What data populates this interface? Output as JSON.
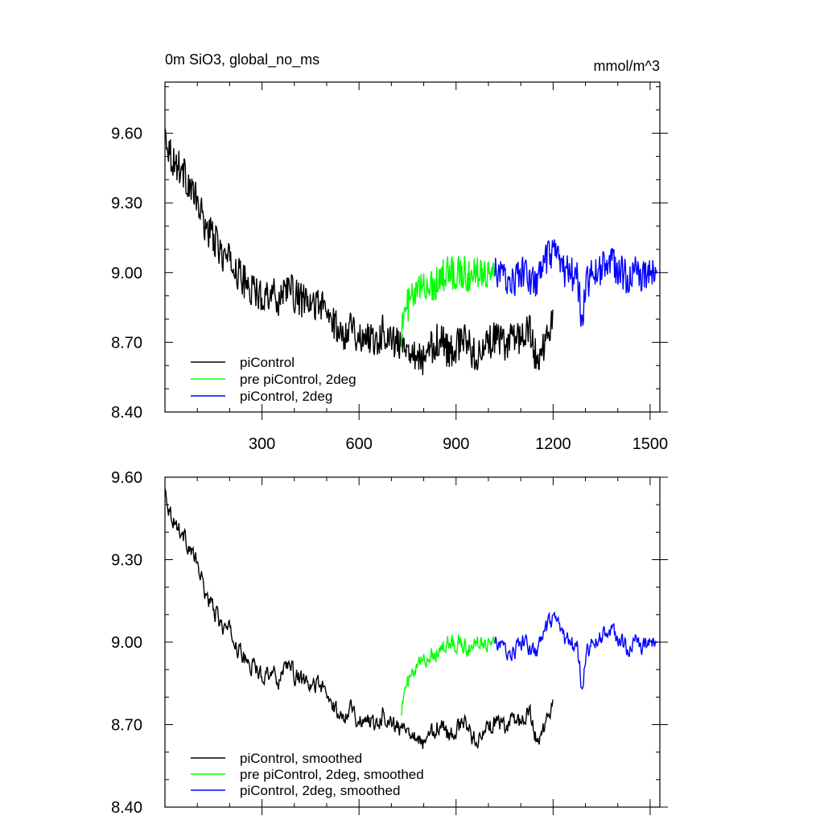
{
  "chart_data": [
    {
      "type": "line",
      "title": "0m SiO3, global_no_ms",
      "units": "mmol/m^3",
      "xlim": [
        0,
        1530
      ],
      "ylim": [
        8.4,
        9.82
      ],
      "xticks": [
        300,
        600,
        900,
        1200,
        1500
      ],
      "xtick_labels": [
        "300",
        "600",
        "900",
        "1200",
        "1500"
      ],
      "yticks": [
        8.4,
        8.7,
        9.0,
        9.3,
        9.6
      ],
      "ytick_labels": [
        "8.40",
        "8.70",
        "9.00",
        "9.30",
        "9.60"
      ],
      "legend_position": "bottom-left",
      "series": [
        {
          "name": "piControl",
          "color": "#000000",
          "x": [
            1,
            10,
            25,
            50,
            75,
            100,
            125,
            150,
            175,
            200,
            225,
            250,
            275,
            300,
            325,
            350,
            375,
            400,
            425,
            450,
            475,
            500,
            525,
            550,
            575,
            600,
            625,
            650,
            675,
            700,
            725,
            750,
            775,
            800,
            825,
            850,
            875,
            900,
            925,
            950,
            975,
            1000,
            1025,
            1050,
            1075,
            1100,
            1125,
            1150,
            1175,
            1200
          ],
          "y": [
            9.6,
            9.55,
            9.48,
            9.45,
            9.38,
            9.3,
            9.2,
            9.15,
            9.08,
            9.05,
            9.0,
            8.95,
            8.92,
            8.9,
            8.92,
            8.88,
            8.95,
            8.9,
            8.88,
            8.85,
            8.88,
            8.82,
            8.78,
            8.72,
            8.8,
            8.7,
            8.74,
            8.7,
            8.75,
            8.72,
            8.68,
            8.7,
            8.65,
            8.62,
            8.68,
            8.72,
            8.66,
            8.68,
            8.72,
            8.66,
            8.64,
            8.7,
            8.72,
            8.68,
            8.74,
            8.72,
            8.76,
            8.62,
            8.7,
            8.8
          ]
        },
        {
          "name": "pre piControl, 2deg",
          "color": "#00ff00",
          "x": [
            730,
            750,
            775,
            800,
            825,
            850,
            875,
            900,
            925,
            950,
            975,
            1000,
            1020
          ],
          "y": [
            8.75,
            8.86,
            8.9,
            8.95,
            8.94,
            8.98,
            9.0,
            9.0,
            9.0,
            8.98,
            9.02,
            9.0,
            9.02
          ]
        },
        {
          "name": "piControl, 2deg",
          "color": "#0000ff",
          "x": [
            1020,
            1050,
            1075,
            1100,
            1125,
            1150,
            1175,
            1200,
            1225,
            1250,
            1275,
            1290,
            1300,
            1325,
            1350,
            1375,
            1400,
            1425,
            1450,
            1475,
            1500,
            1520
          ],
          "y": [
            9.0,
            8.98,
            8.96,
            9.0,
            8.98,
            8.95,
            9.05,
            9.08,
            9.02,
            9.0,
            8.98,
            8.78,
            8.95,
            9.0,
            9.02,
            9.05,
            9.02,
            8.98,
            9.0,
            8.98,
            9.0,
            9.0
          ]
        }
      ]
    },
    {
      "type": "line",
      "title": "",
      "xlim": [
        0,
        1530
      ],
      "ylim": [
        8.4,
        9.6
      ],
      "xticks": [
        300,
        600,
        900,
        1200,
        1500
      ],
      "yticks": [
        8.4,
        8.7,
        9.0,
        9.3,
        9.6
      ],
      "ytick_labels": [
        "8.40",
        "8.70",
        "9.00",
        "9.30",
        "9.60"
      ],
      "legend_position": "bottom-left",
      "series": [
        {
          "name": "piControl, smoothed",
          "color": "#000000",
          "x": [
            1,
            10,
            25,
            50,
            75,
            100,
            125,
            150,
            175,
            200,
            225,
            250,
            275,
            300,
            325,
            350,
            375,
            400,
            425,
            450,
            475,
            500,
            525,
            550,
            575,
            600,
            625,
            650,
            675,
            700,
            725,
            750,
            775,
            800,
            825,
            850,
            875,
            900,
            925,
            950,
            975,
            1000,
            1025,
            1050,
            1075,
            1100,
            1125,
            1150,
            1175,
            1200
          ],
          "y": [
            9.55,
            9.5,
            9.45,
            9.4,
            9.35,
            9.28,
            9.18,
            9.12,
            9.06,
            9.04,
            8.98,
            8.93,
            8.91,
            8.88,
            8.9,
            8.86,
            8.93,
            8.88,
            8.86,
            8.83,
            8.86,
            8.8,
            8.76,
            8.72,
            8.78,
            8.7,
            8.73,
            8.7,
            8.74,
            8.71,
            8.68,
            8.7,
            8.66,
            8.63,
            8.67,
            8.71,
            8.66,
            8.68,
            8.71,
            8.66,
            8.65,
            8.69,
            8.71,
            8.68,
            8.73,
            8.71,
            8.75,
            8.64,
            8.7,
            8.78
          ]
        },
        {
          "name": "pre piControl, 2deg, smoothed",
          "color": "#00ff00",
          "x": [
            730,
            750,
            775,
            800,
            825,
            850,
            875,
            900,
            925,
            950,
            975,
            1000,
            1020
          ],
          "y": [
            8.76,
            8.85,
            8.89,
            8.94,
            8.95,
            8.98,
            8.99,
            9.0,
            8.99,
            8.98,
            9.01,
            9.0,
            9.01
          ]
        },
        {
          "name": "piControl, 2deg, smoothed",
          "color": "#0000ff",
          "x": [
            1020,
            1050,
            1075,
            1100,
            1125,
            1150,
            1175,
            1200,
            1225,
            1250,
            1275,
            1290,
            1300,
            1325,
            1350,
            1375,
            1400,
            1425,
            1450,
            1475,
            1500,
            1520
          ],
          "y": [
            9.0,
            8.97,
            8.96,
            9.0,
            8.98,
            8.96,
            9.04,
            9.08,
            9.03,
            9.0,
            8.98,
            8.82,
            8.95,
            9.0,
            9.02,
            9.04,
            9.02,
            8.98,
            9.0,
            8.98,
            9.0,
            9.0
          ]
        }
      ]
    }
  ]
}
